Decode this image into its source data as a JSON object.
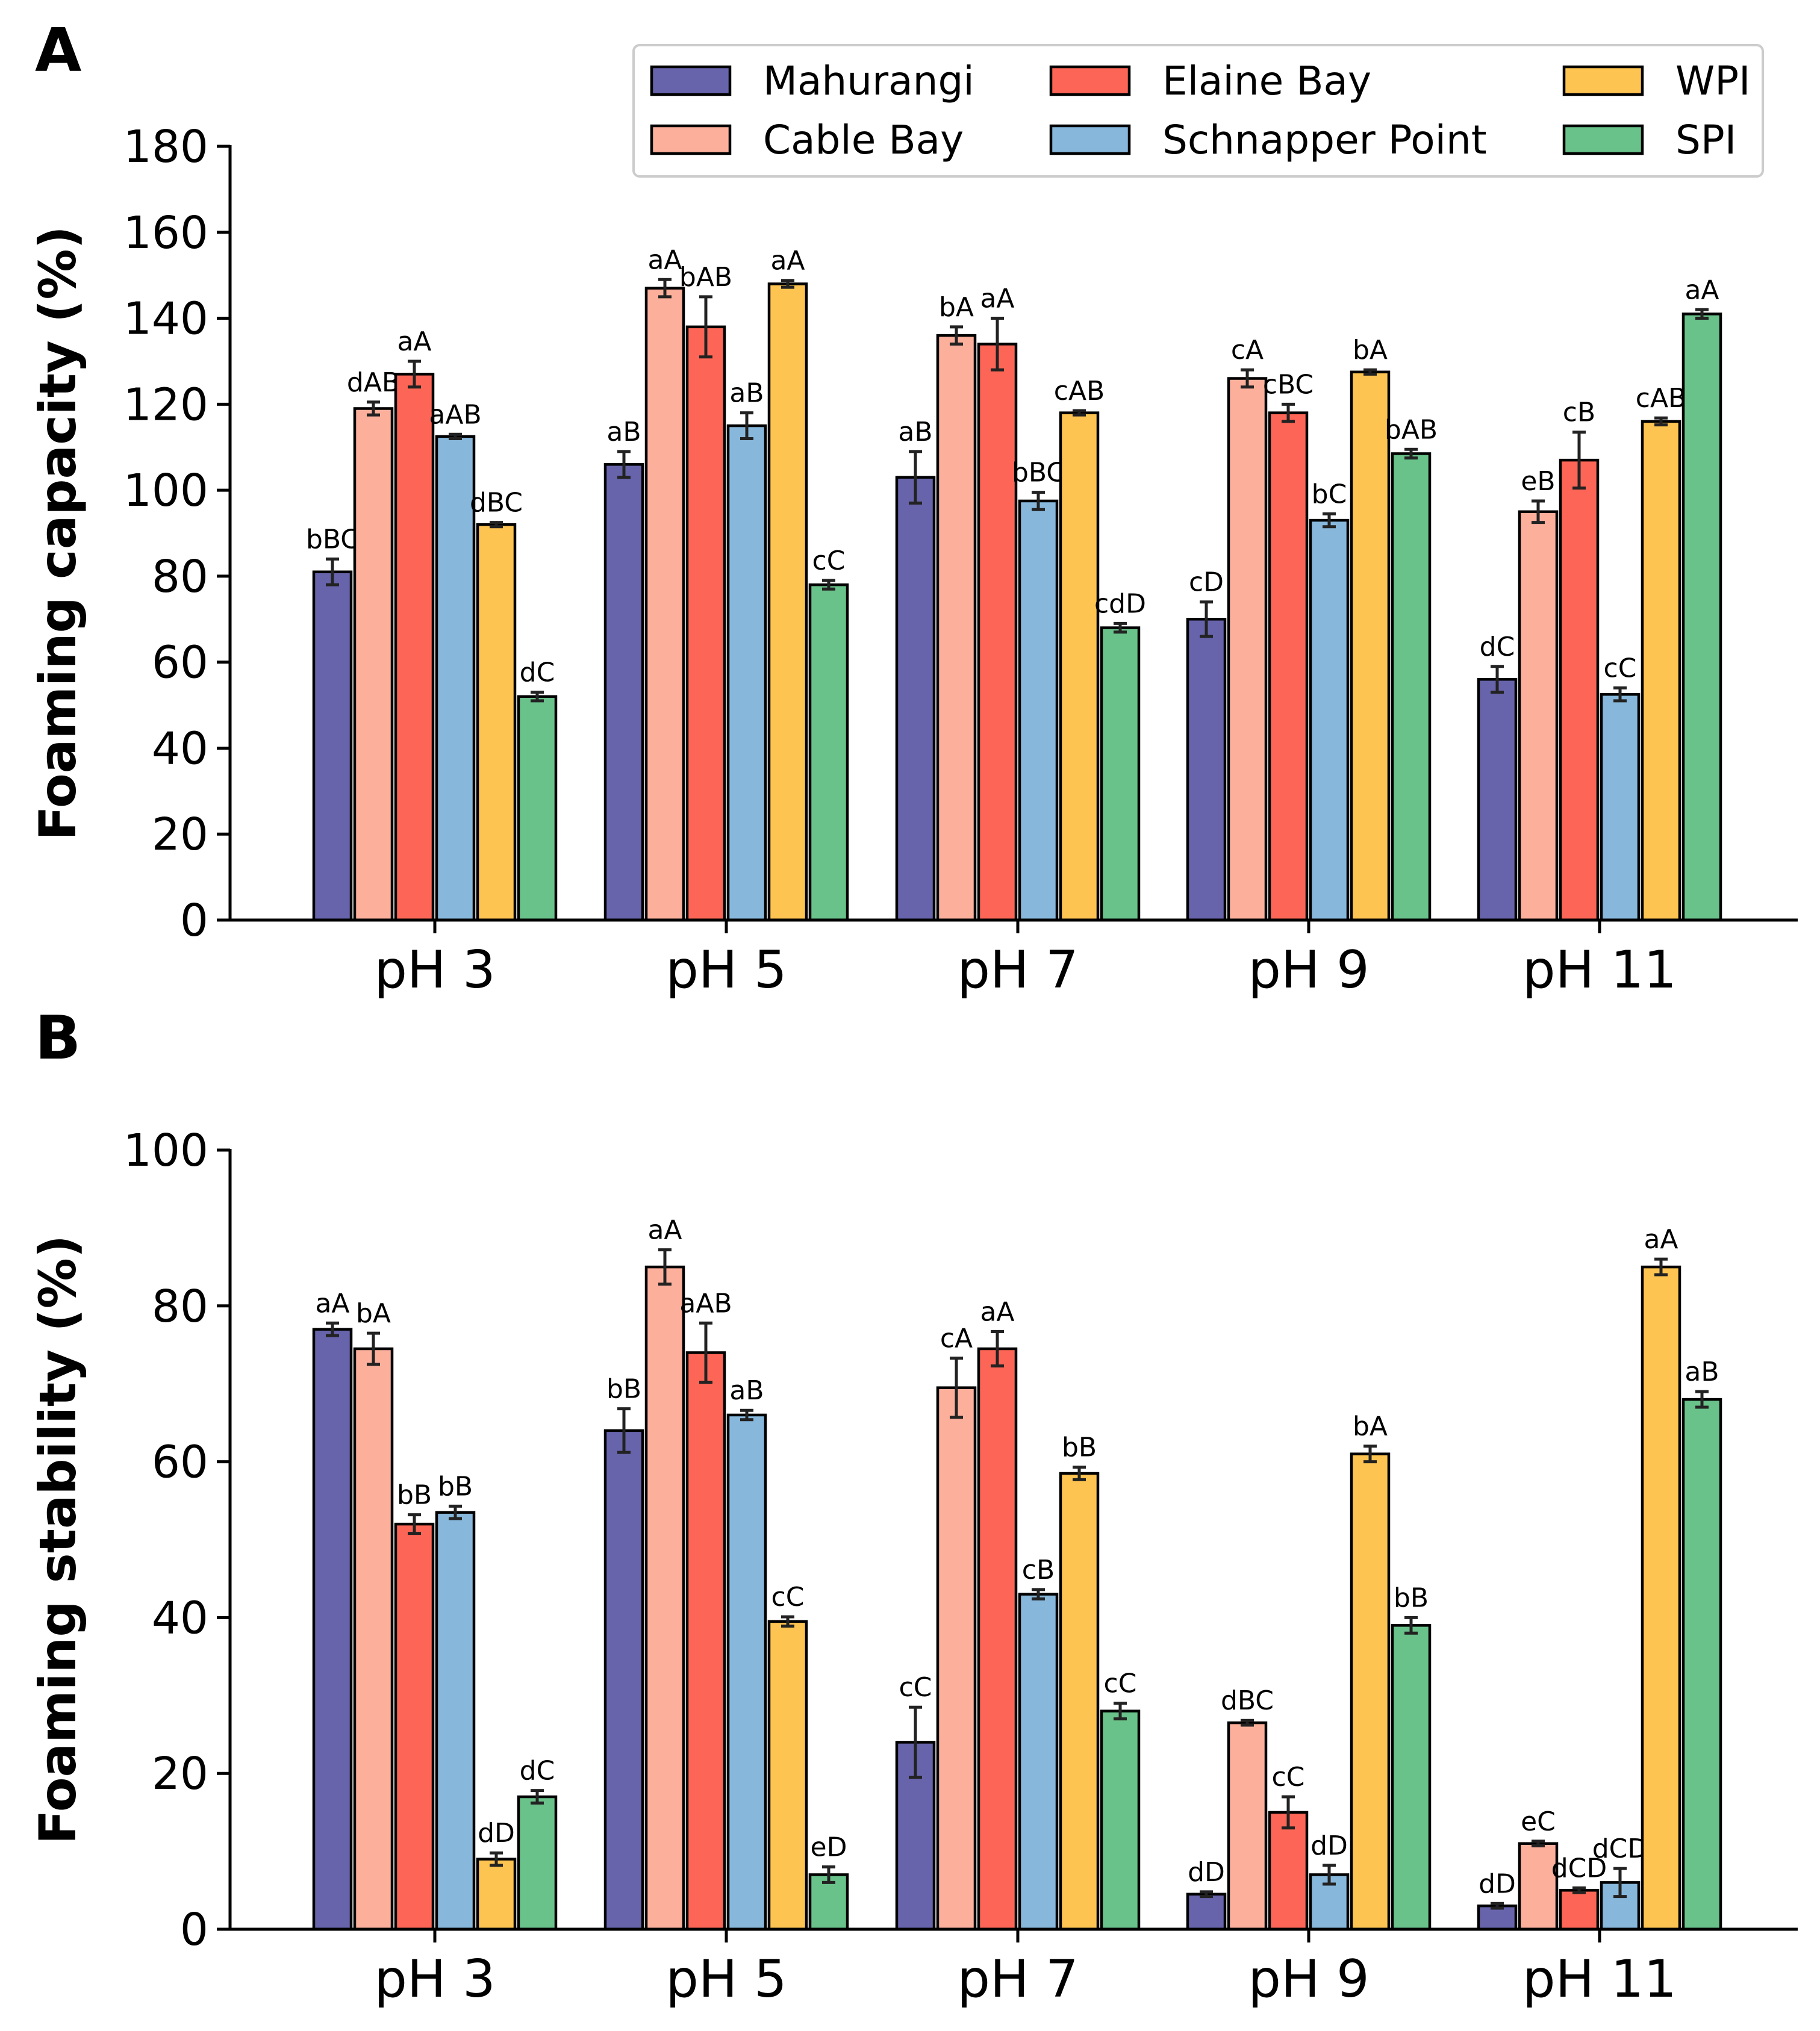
{
  "chart_data": [
    {
      "panel": "A",
      "type": "bar",
      "title": "",
      "xlabel": "",
      "ylabel": "Foaming capacity (%)",
      "ylim": [
        0,
        180
      ],
      "yticks": [
        0,
        20,
        40,
        60,
        80,
        100,
        120,
        140,
        160,
        180
      ],
      "grid": false,
      "legend_position": "top-right",
      "categories": [
        "pH 3",
        "pH 5",
        "pH 7",
        "pH 9",
        "pH 11"
      ],
      "series": [
        {
          "name": "Mahurangi",
          "color": "#6764ac",
          "values": [
            81,
            106,
            103,
            70,
            56
          ],
          "errors": [
            3,
            3,
            6,
            4,
            3
          ],
          "labels": [
            "bBC",
            "aB",
            "aB",
            "cD",
            "dC"
          ]
        },
        {
          "name": "Cable Bay",
          "color": "#fcb09c",
          "values": [
            119,
            147,
            136,
            126,
            95
          ],
          "errors": [
            1.5,
            2,
            2,
            2,
            2.5
          ],
          "labels": [
            "dAB",
            "aA",
            "bA",
            "cA",
            "eB"
          ]
        },
        {
          "name": "Elaine Bay",
          "color": "#fd6656",
          "values": [
            127,
            138,
            134,
            118,
            107
          ],
          "errors": [
            3,
            7,
            6,
            2,
            6.5
          ],
          "labels": [
            "aA",
            "bAB",
            "aA",
            "cBC",
            "cB"
          ]
        },
        {
          "name": "Schnapper Point",
          "color": "#87b8dc",
          "values": [
            112.5,
            115,
            97.5,
            93,
            52.5
          ],
          "errors": [
            0.5,
            3,
            2,
            1.5,
            1.5
          ],
          "labels": [
            "aAB",
            "aB",
            "bBC",
            "bC",
            "cC"
          ]
        },
        {
          "name": "WPI",
          "color": "#fec451",
          "values": [
            92,
            148,
            118,
            127.5,
            116
          ],
          "errors": [
            0.5,
            0.8,
            0.5,
            0.5,
            0.8
          ],
          "labels": [
            "dBC",
            "aA",
            "cAB",
            "bA",
            "cAB"
          ]
        },
        {
          "name": "SPI",
          "color": "#69c28a",
          "values": [
            52,
            78,
            68,
            108.5,
            141
          ],
          "errors": [
            1,
            1,
            1,
            1,
            1
          ],
          "labels": [
            "dC",
            "cC",
            "cdD",
            "bAB",
            "aA"
          ]
        }
      ]
    },
    {
      "panel": "B",
      "type": "bar",
      "title": "",
      "xlabel": "",
      "ylabel": "Foaming stability (%)",
      "ylim": [
        0,
        100
      ],
      "yticks": [
        0,
        20,
        40,
        60,
        80,
        100
      ],
      "grid": false,
      "categories": [
        "pH 3",
        "pH 5",
        "pH 7",
        "pH 9",
        "pH 11"
      ],
      "series": [
        {
          "name": "Mahurangi",
          "color": "#6764ac",
          "values": [
            77,
            64,
            24,
            4.5,
            3
          ],
          "errors": [
            0.8,
            2.8,
            4.5,
            0.3,
            0.3
          ],
          "labels": [
            "aA",
            "bB",
            "cC",
            "dD",
            "dD"
          ]
        },
        {
          "name": "Cable Bay",
          "color": "#fcb09c",
          "values": [
            74.5,
            85,
            69.5,
            26.5,
            11
          ],
          "errors": [
            2,
            2.2,
            3.8,
            0.3,
            0.3
          ],
          "labels": [
            "bA",
            "aA",
            "cA",
            "dBC",
            "eC"
          ]
        },
        {
          "name": "Elaine Bay",
          "color": "#fd6656",
          "values": [
            52,
            74,
            74.5,
            15,
            5
          ],
          "errors": [
            1.2,
            3.8,
            2.2,
            2,
            0.3
          ],
          "labels": [
            "bB",
            "aAB",
            "aA",
            "cC",
            "dCD"
          ]
        },
        {
          "name": "Schnapper Point",
          "color": "#87b8dc",
          "values": [
            53.5,
            66,
            43,
            7,
            6
          ],
          "errors": [
            0.8,
            0.6,
            0.6,
            1.2,
            1.8
          ],
          "labels": [
            "bB",
            "aB",
            "cB",
            "dD",
            "dCD"
          ]
        },
        {
          "name": "WPI",
          "color": "#fec451",
          "values": [
            9,
            39.5,
            58.5,
            61,
            85
          ],
          "errors": [
            0.8,
            0.6,
            0.8,
            1,
            1
          ],
          "labels": [
            "dD",
            "cC",
            "bB",
            "bA",
            "aA"
          ]
        },
        {
          "name": "SPI",
          "color": "#69c28a",
          "values": [
            17,
            7,
            28,
            39,
            68
          ],
          "errors": [
            0.8,
            1,
            1,
            1,
            1
          ],
          "labels": [
            "dC",
            "eD",
            "cC",
            "bB",
            "aB"
          ]
        }
      ]
    }
  ]
}
